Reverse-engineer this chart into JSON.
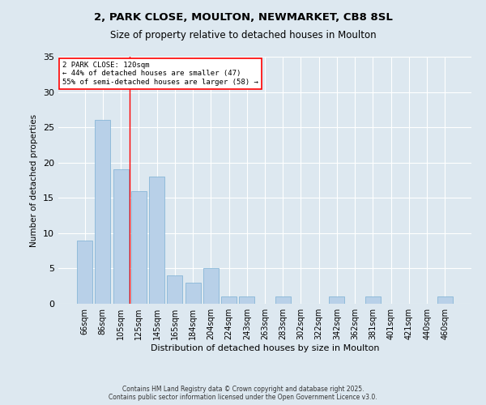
{
  "title_line1": "2, PARK CLOSE, MOULTON, NEWMARKET, CB8 8SL",
  "title_line2": "Size of property relative to detached houses in Moulton",
  "xlabel": "Distribution of detached houses by size in Moulton",
  "ylabel": "Number of detached properties",
  "footer_line1": "Contains HM Land Registry data © Crown copyright and database right 2025.",
  "footer_line2": "Contains public sector information licensed under the Open Government Licence v3.0.",
  "annotation_line1": "2 PARK CLOSE: 120sqm",
  "annotation_line2": "← 44% of detached houses are smaller (47)",
  "annotation_line3": "55% of semi-detached houses are larger (58) →",
  "categories": [
    "66sqm",
    "86sqm",
    "105sqm",
    "125sqm",
    "145sqm",
    "165sqm",
    "184sqm",
    "204sqm",
    "224sqm",
    "243sqm",
    "263sqm",
    "283sqm",
    "302sqm",
    "322sqm",
    "342sqm",
    "362sqm",
    "381sqm",
    "401sqm",
    "421sqm",
    "440sqm",
    "460sqm"
  ],
  "values": [
    9,
    26,
    19,
    16,
    18,
    4,
    3,
    5,
    1,
    1,
    0,
    1,
    0,
    0,
    1,
    0,
    1,
    0,
    0,
    0,
    1
  ],
  "bar_color": "#b8d0e8",
  "bar_edge_color": "#7aafd4",
  "background_color": "#dde8f0",
  "grid_color": "#ffffff",
  "red_line_x": 2.5,
  "ylim": [
    0,
    35
  ],
  "yticks": [
    0,
    5,
    10,
    15,
    20,
    25,
    30,
    35
  ]
}
